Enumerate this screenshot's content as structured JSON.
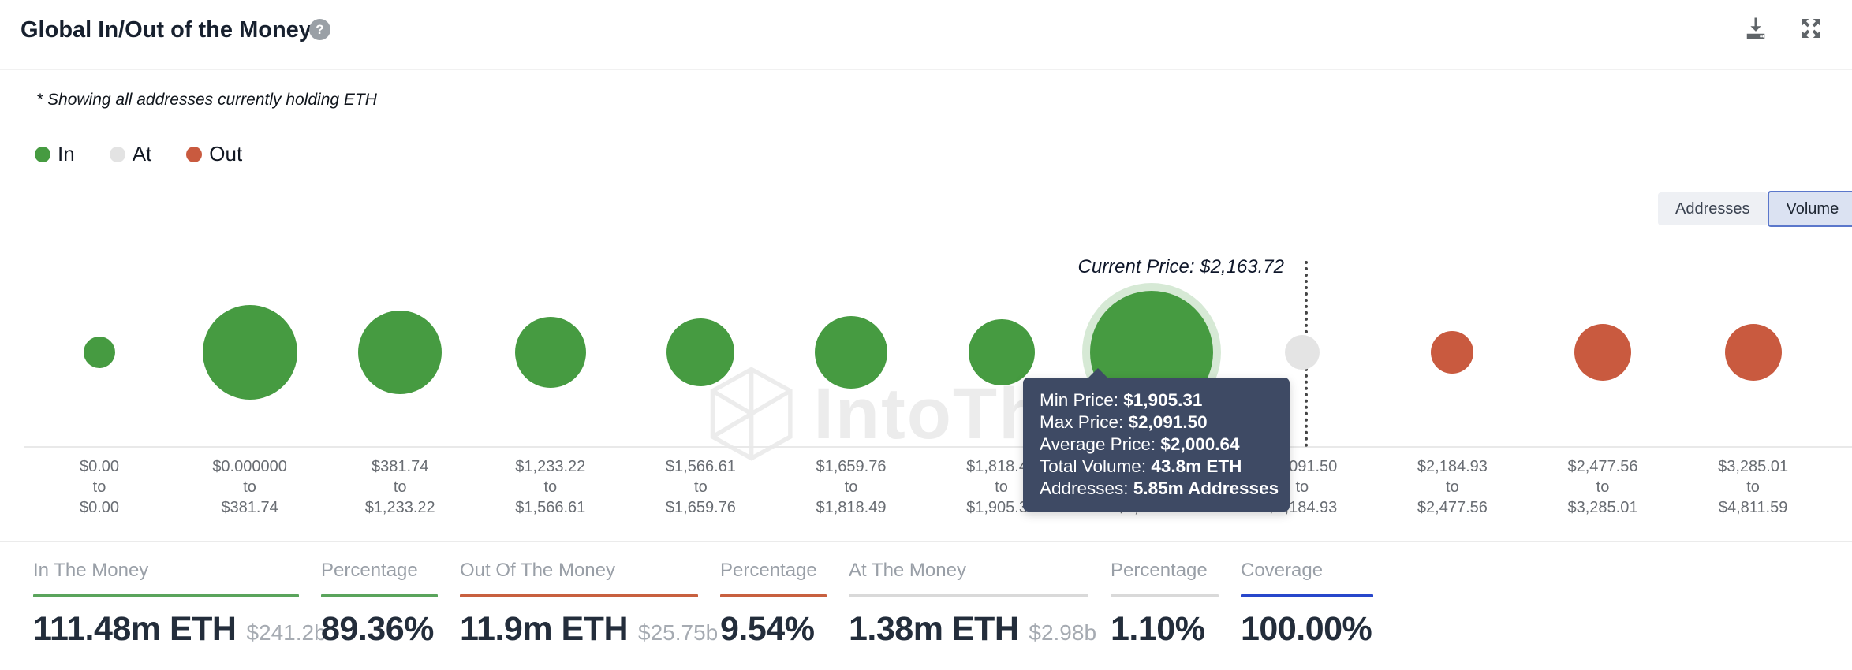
{
  "header": {
    "title": "Global In/Out of the Money",
    "help_icon": "?",
    "icons": [
      "download-icon",
      "fullscreen-icon"
    ]
  },
  "subtitle": "* Showing all addresses currently holding ETH",
  "legend": [
    {
      "label": "In",
      "color": "#469b41"
    },
    {
      "label": "At",
      "color": "#e3e3e3"
    },
    {
      "label": "Out",
      "color": "#c95a3f"
    }
  ],
  "toggle": {
    "options": [
      {
        "label": "Addresses",
        "selected": false
      },
      {
        "label": "Volume",
        "selected": true
      }
    ]
  },
  "watermark": "IntoTheBlock",
  "chart_data": {
    "type": "bubble",
    "title": "Global In/Out of the Money",
    "current_price_label": "Current Price: $2,163.72",
    "current_price": "$2,163.72",
    "range_separator": "to",
    "colors": {
      "in": "#469b41",
      "at": "#e4e4e4",
      "out": "#c95a3f",
      "highlight_halo": "rgba(70,155,65,0.22)"
    },
    "buckets": [
      {
        "from": "$0.00",
        "to": "$0.00",
        "status": "in",
        "size": 20
      },
      {
        "from": "$0.000000",
        "to": "$381.74",
        "status": "in",
        "size": 60
      },
      {
        "from": "$381.74",
        "to": "$1,233.22",
        "status": "in",
        "size": 53
      },
      {
        "from": "$1,233.22",
        "to": "$1,566.61",
        "status": "in",
        "size": 45
      },
      {
        "from": "$1,566.61",
        "to": "$1,659.76",
        "status": "in",
        "size": 43
      },
      {
        "from": "$1,659.76",
        "to": "$1,818.49",
        "status": "in",
        "size": 46
      },
      {
        "from": "$1,818.49",
        "to": "$1,905.31",
        "status": "in",
        "size": 42
      },
      {
        "from": "$1,905.31",
        "to": "$2,091.50",
        "status": "in",
        "size": 78,
        "highlighted": true,
        "min_price": "$1,905.31",
        "max_price": "$2,091.50",
        "average_price": "$2,000.64",
        "total_volume": "43.8m ETH",
        "addresses": "5.85m Addresses"
      },
      {
        "from": "$2,091.50",
        "to": "$2,184.93",
        "status": "at",
        "size": 22
      },
      {
        "from": "$2,184.93",
        "to": "$2,477.56",
        "status": "out",
        "size": 27
      },
      {
        "from": "$2,477.56",
        "to": "$3,285.01",
        "status": "out",
        "size": 36
      },
      {
        "from": "$3,285.01",
        "to": "$4,811.59",
        "status": "out",
        "size": 36
      }
    ]
  },
  "tooltip": {
    "rows": [
      {
        "label": "Min Price: ",
        "value": "$1,905.31"
      },
      {
        "label": "Max Price: ",
        "value": "$2,091.50"
      },
      {
        "label": "Average Price: ",
        "value": "$2,000.64"
      },
      {
        "label": "Total Volume: ",
        "value": "43.8m ETH"
      },
      {
        "label": "Addresses: ",
        "value": "5.85m Addresses"
      }
    ]
  },
  "stats": [
    {
      "label": "In The Money",
      "value": "111.48m ETH",
      "sub": "$241.2b",
      "accent": "#5aa45c"
    },
    {
      "label": "Percentage",
      "value": "89.36%",
      "sub": "",
      "accent": "#5aa45c"
    },
    {
      "label": "Out Of The Money",
      "value": "11.9m ETH",
      "sub": "$25.75b",
      "accent": "#c8603f"
    },
    {
      "label": "Percentage",
      "value": "9.54%",
      "sub": "",
      "accent": "#c8603f"
    },
    {
      "label": "At The Money",
      "value": "1.38m ETH",
      "sub": "$2.98b",
      "accent": "#d9d9d9"
    },
    {
      "label": "Percentage",
      "value": "1.10%",
      "sub": "",
      "accent": "#d9d9d9"
    },
    {
      "label": "Coverage",
      "value": "100.00%",
      "sub": "",
      "accent": "#2847cb"
    }
  ]
}
